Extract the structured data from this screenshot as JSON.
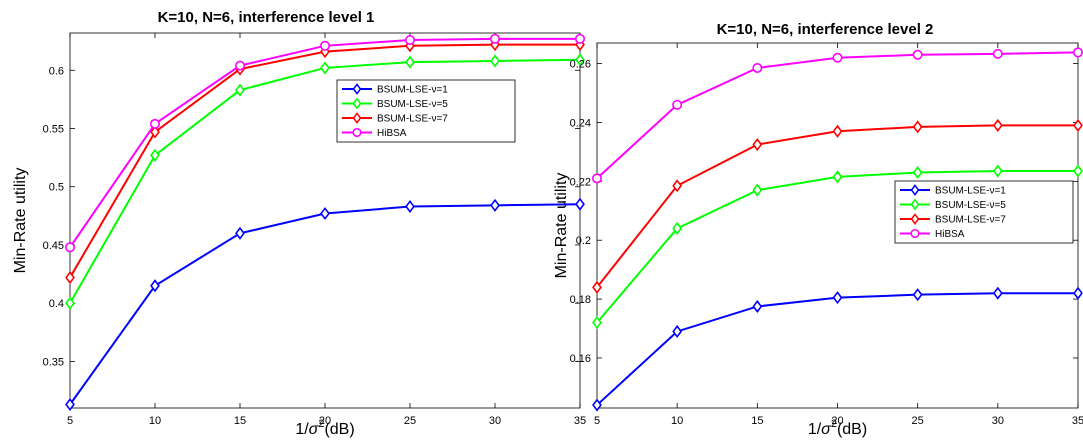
{
  "chart_data": [
    {
      "type": "line",
      "title": "K=10, N=6, interference level 1",
      "xlabel_main": "1/",
      "xlabel_sigma": "σ",
      "xlabel_exp": "2",
      "xlabel_suffix": "(dB)",
      "ylabel": "Min-Rate utility",
      "x": [
        5,
        10,
        15,
        20,
        25,
        30,
        35
      ],
      "x_ticks": [
        "5",
        "10",
        "15",
        "20",
        "25",
        "30",
        "35"
      ],
      "xlim": [
        5,
        35
      ],
      "ylim": [
        0.31,
        0.632
      ],
      "y_ticks": [
        0.35,
        0.4,
        0.45,
        0.5,
        0.55,
        0.6
      ],
      "y_tick_labels": [
        "0.35",
        "0.4",
        "0.45",
        "0.5",
        "0.55",
        "0.6"
      ],
      "legend_position": "top-right",
      "series": [
        {
          "name": "BSUM-LSE-ν=1",
          "color": "#0000ff",
          "marker": "diamond",
          "values": [
            0.313,
            0.415,
            0.46,
            0.477,
            0.483,
            0.484,
            0.485
          ]
        },
        {
          "name": "BSUM-LSE-ν=5",
          "color": "#00ff00",
          "marker": "diamond",
          "values": [
            0.4,
            0.527,
            0.583,
            0.602,
            0.607,
            0.608,
            0.609
          ]
        },
        {
          "name": "BSUM-LSE-ν=7",
          "color": "#ff0000",
          "marker": "diamond",
          "values": [
            0.422,
            0.547,
            0.601,
            0.616,
            0.621,
            0.622,
            0.622
          ]
        },
        {
          "name": "HiBSA",
          "color": "#ff00ff",
          "marker": "circle",
          "values": [
            0.448,
            0.554,
            0.604,
            0.621,
            0.626,
            0.627,
            0.627
          ]
        }
      ]
    },
    {
      "type": "line",
      "title": "K=10, N=6, interference level 2",
      "xlabel_main": "1/",
      "xlabel_sigma": "σ",
      "xlabel_exp": "2",
      "xlabel_suffix": "(dB)",
      "ylabel": "Min-Rate utility",
      "x": [
        5,
        10,
        15,
        20,
        25,
        30,
        35
      ],
      "x_ticks": [
        "5",
        "10",
        "15",
        "20",
        "25",
        "30",
        "35"
      ],
      "xlim": [
        5,
        35
      ],
      "ylim": [
        0.143,
        0.267
      ],
      "y_ticks": [
        0.16,
        0.18,
        0.2,
        0.22,
        0.24,
        0.26
      ],
      "y_tick_labels": [
        "0.16",
        "0.18",
        "0.2",
        "0.22",
        "0.24",
        "0.26"
      ],
      "legend_position": "center-right",
      "series": [
        {
          "name": "BSUM-LSE-ν=1",
          "color": "#0000ff",
          "marker": "diamond",
          "values": [
            0.144,
            0.169,
            0.1775,
            0.1805,
            0.1815,
            0.182,
            0.182
          ]
        },
        {
          "name": "BSUM-LSE-ν=5",
          "color": "#00ff00",
          "marker": "diamond",
          "values": [
            0.172,
            0.204,
            0.217,
            0.2215,
            0.223,
            0.2235,
            0.2235
          ]
        },
        {
          "name": "BSUM-LSE-ν=7",
          "color": "#ff0000",
          "marker": "diamond",
          "values": [
            0.184,
            0.2185,
            0.2325,
            0.237,
            0.2385,
            0.239,
            0.239
          ]
        },
        {
          "name": "HiBSA",
          "color": "#ff00ff",
          "marker": "circle",
          "values": [
            0.221,
            0.246,
            0.2585,
            0.262,
            0.263,
            0.2633,
            0.2638
          ]
        }
      ]
    }
  ]
}
